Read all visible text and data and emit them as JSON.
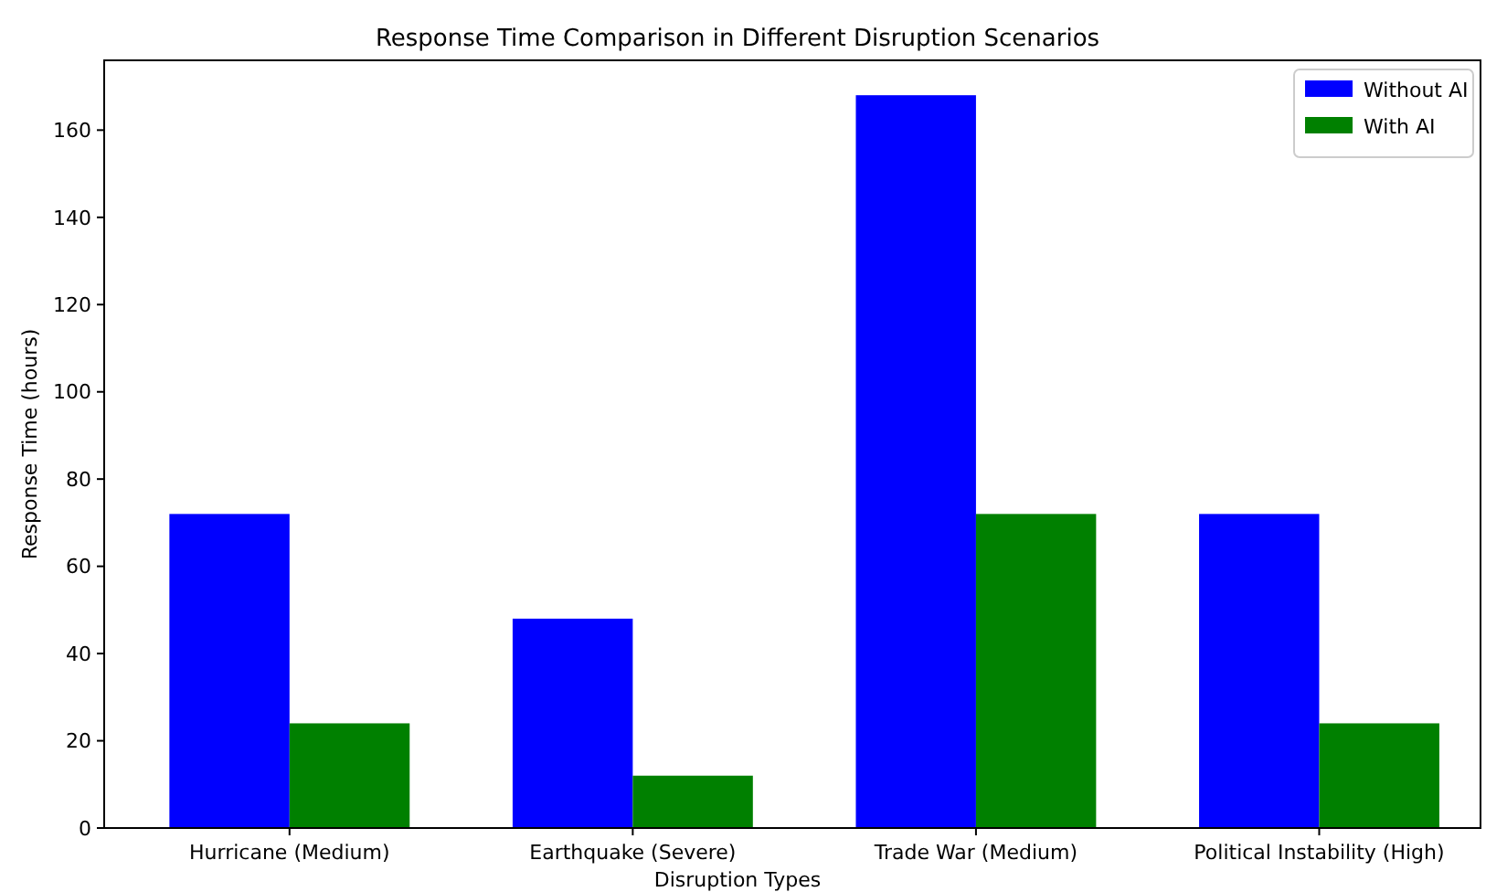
{
  "chart_data": {
    "type": "bar",
    "title": "Response Time Comparison in Different Disruption Scenarios",
    "xlabel": "Disruption Types",
    "ylabel": "Response Time (hours)",
    "categories": [
      "Hurricane (Medium)",
      "Earthquake (Severe)",
      "Trade War (Medium)",
      "Political Instability (High)"
    ],
    "series": [
      {
        "name": "Without AI",
        "color": "#0000ff",
        "values": [
          72,
          48,
          168,
          72
        ]
      },
      {
        "name": "With AI",
        "color": "#008000",
        "values": [
          24,
          12,
          72,
          24
        ]
      }
    ],
    "ylim": [
      0,
      176
    ],
    "yticks": [
      0,
      20,
      40,
      60,
      80,
      100,
      120,
      140,
      160
    ],
    "legend": "top right"
  }
}
